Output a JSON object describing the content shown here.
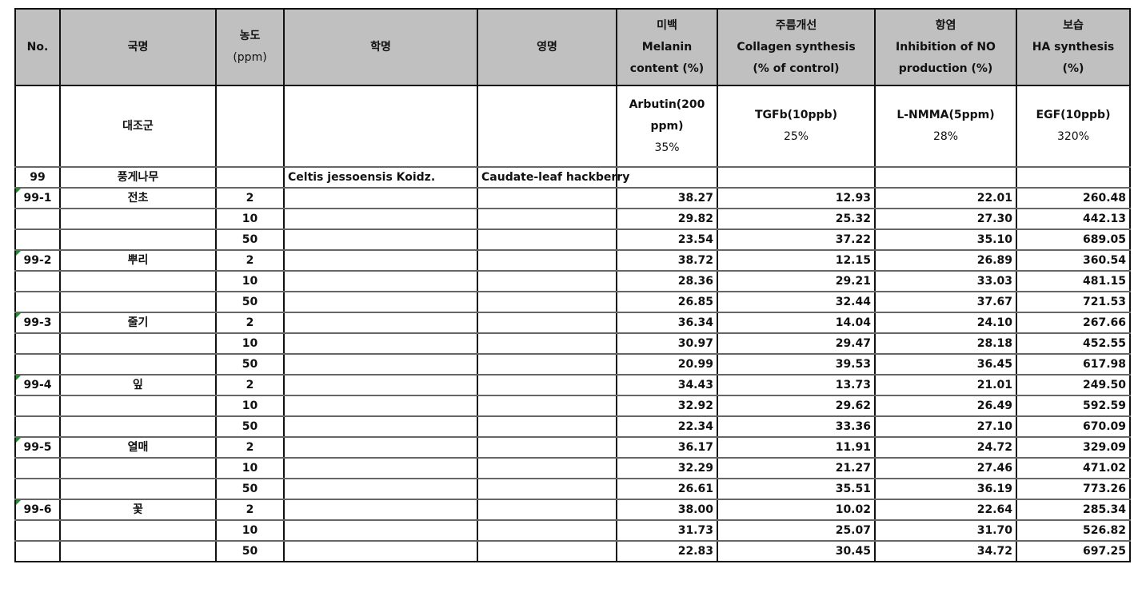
{
  "header": {
    "no": "No.",
    "name_kr": "국명",
    "conc_line1": "농도",
    "conc_line2": "(ppm)",
    "sci_name": "학명",
    "eng_name": "영명",
    "whitening": [
      "미백",
      "Melanin",
      "content (%)"
    ],
    "wrinkle": [
      "주름개선",
      "Collagen synthesis",
      "(% of control)"
    ],
    "anti_inflam": [
      "항염",
      "Inhibition of NO",
      "production (%)"
    ],
    "moisture": [
      "보습",
      "HA synthesis",
      "(%)"
    ]
  },
  "control": {
    "name": "대조군",
    "whitening": [
      "Arbutin(200",
      "ppm)",
      "35%"
    ],
    "wrinkle": [
      "TGFb(10ppb)",
      "25%"
    ],
    "anti_inflam": [
      "L-NMMA(5ppm)",
      "28%"
    ],
    "moisture": [
      "EGF(10ppb)",
      "320%"
    ]
  },
  "species": {
    "no": "99",
    "name": "풍게나무",
    "sci_name": "Celtis jessoensis Koidz.",
    "eng_name": "Caudate-leaf hackberry"
  },
  "rows": [
    {
      "no": "99-1",
      "name": "전초",
      "conc": "2",
      "v": [
        "38.27",
        "12.93",
        "22.01",
        "260.48"
      ]
    },
    {
      "no": "",
      "name": "",
      "conc": "10",
      "v": [
        "29.82",
        "25.32",
        "27.30",
        "442.13"
      ]
    },
    {
      "no": "",
      "name": "",
      "conc": "50",
      "v": [
        "23.54",
        "37.22",
        "35.10",
        "689.05"
      ]
    },
    {
      "no": "99-2",
      "name": "뿌리",
      "conc": "2",
      "v": [
        "38.72",
        "12.15",
        "26.89",
        "360.54"
      ]
    },
    {
      "no": "",
      "name": "",
      "conc": "10",
      "v": [
        "28.36",
        "29.21",
        "33.03",
        "481.15"
      ]
    },
    {
      "no": "",
      "name": "",
      "conc": "50",
      "v": [
        "26.85",
        "32.44",
        "37.67",
        "721.53"
      ]
    },
    {
      "no": "99-3",
      "name": "줄기",
      "conc": "2",
      "v": [
        "36.34",
        "14.04",
        "24.10",
        "267.66"
      ]
    },
    {
      "no": "",
      "name": "",
      "conc": "10",
      "v": [
        "30.97",
        "29.47",
        "28.18",
        "452.55"
      ]
    },
    {
      "no": "",
      "name": "",
      "conc": "50",
      "v": [
        "20.99",
        "39.53",
        "36.45",
        "617.98"
      ]
    },
    {
      "no": "99-4",
      "name": "잎",
      "conc": "2",
      "v": [
        "34.43",
        "13.73",
        "21.01",
        "249.50"
      ]
    },
    {
      "no": "",
      "name": "",
      "conc": "10",
      "v": [
        "32.92",
        "29.62",
        "26.49",
        "592.59"
      ]
    },
    {
      "no": "",
      "name": "",
      "conc": "50",
      "v": [
        "22.34",
        "33.36",
        "27.10",
        "670.09"
      ]
    },
    {
      "no": "99-5",
      "name": "열매",
      "conc": "2",
      "v": [
        "36.17",
        "11.91",
        "24.72",
        "329.09"
      ]
    },
    {
      "no": "",
      "name": "",
      "conc": "10",
      "v": [
        "32.29",
        "21.27",
        "27.46",
        "471.02"
      ]
    },
    {
      "no": "",
      "name": "",
      "conc": "50",
      "v": [
        "26.61",
        "35.51",
        "36.19",
        "773.26"
      ]
    },
    {
      "no": "99-6",
      "name": "꽃",
      "conc": "2",
      "v": [
        "38.00",
        "10.02",
        "22.64",
        "285.34"
      ]
    },
    {
      "no": "",
      "name": "",
      "conc": "10",
      "v": [
        "31.73",
        "25.07",
        "31.70",
        "526.82"
      ]
    },
    {
      "no": "",
      "name": "",
      "conc": "50",
      "v": [
        "22.83",
        "30.45",
        "34.72",
        "697.25"
      ]
    }
  ]
}
